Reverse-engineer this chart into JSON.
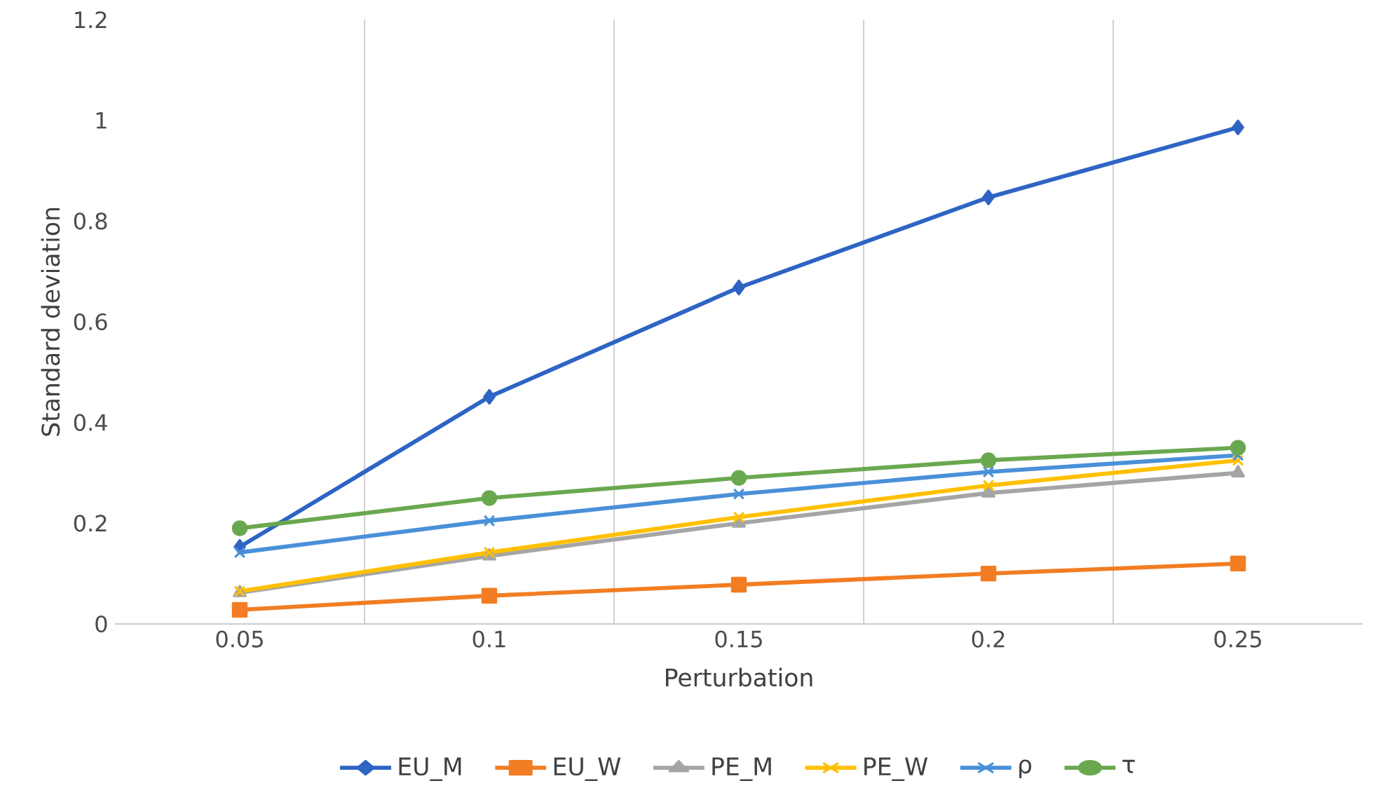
{
  "chart_data": {
    "type": "line",
    "xlabel": "Perturbation",
    "ylabel": "Standard deviation",
    "categories": [
      "0.05",
      "0.1",
      "0.15",
      "0.2",
      "0.25"
    ],
    "series": [
      {
        "name": "EU_M",
        "color": "#2e64c4",
        "marker": "diamond",
        "values": [
          0.153,
          0.451,
          0.668,
          0.847,
          0.986
        ]
      },
      {
        "name": "EU_W",
        "color": "#f27d22",
        "marker": "square",
        "values": [
          0.028,
          0.056,
          0.078,
          0.1,
          0.12
        ]
      },
      {
        "name": "PE_M",
        "color": "#a5a5a5",
        "marker": "triangle",
        "values": [
          0.062,
          0.135,
          0.2,
          0.26,
          0.3
        ]
      },
      {
        "name": "PE_W",
        "color": "#ffc000",
        "marker": "cross",
        "values": [
          0.065,
          0.142,
          0.212,
          0.275,
          0.325
        ]
      },
      {
        "name": "ρ",
        "color": "#4a90d9",
        "marker": "cross",
        "values": [
          0.142,
          0.205,
          0.258,
          0.302,
          0.335
        ]
      },
      {
        "name": "τ",
        "color": "#6aa84f",
        "marker": "circle",
        "values": [
          0.19,
          0.25,
          0.29,
          0.325,
          0.35
        ]
      }
    ],
    "ylim": [
      0,
      1.2
    ],
    "yticks": [
      0,
      0.2,
      0.4,
      0.6,
      0.8,
      1,
      1.2
    ],
    "grid": "x",
    "legend": "bottom",
    "line_style": "solid"
  }
}
